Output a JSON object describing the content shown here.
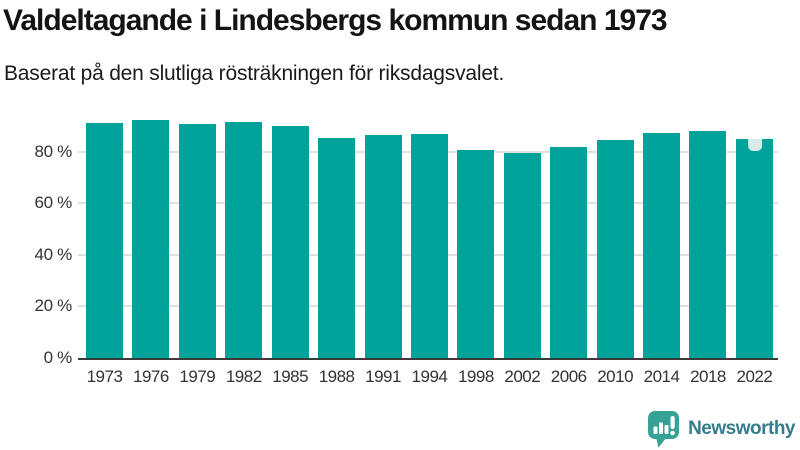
{
  "chart_data": {
    "type": "bar",
    "title": "Valdeltagande i Lindesbergs kommun sedan 1973",
    "subtitle": "Baserat på den slutliga rösträkningen för riksdagsvalet.",
    "categories": [
      "1973",
      "1976",
      "1979",
      "1982",
      "1985",
      "1988",
      "1991",
      "1994",
      "1998",
      "2002",
      "2006",
      "2010",
      "2014",
      "2018",
      "2022"
    ],
    "values": [
      91.3,
      92.3,
      90.6,
      91.6,
      90.0,
      85.3,
      86.4,
      86.9,
      80.6,
      79.5,
      81.9,
      84.5,
      87.1,
      87.9,
      84.8
    ],
    "unit": "%",
    "ylim": [
      0,
      95
    ],
    "yticks": [
      0,
      20,
      40,
      60,
      80
    ],
    "ytick_suffix": " %",
    "grid": "horizontal",
    "legend": "none",
    "bar_color": "#00a39a",
    "highlight": {
      "category": "2022",
      "style": "notch-marker",
      "color": "#d8ede9"
    }
  },
  "footer": {
    "brand": "Newsworthy",
    "logo_icon": "newsworthy-speech-bubble-bar-chart-icon"
  },
  "colors": {
    "bar": "#00a39a",
    "highlight_notch": "#d8ede9",
    "gridline": "#e0e0e0",
    "axis_line": "#3b3b3b",
    "tick_text": "#333333",
    "title_text": "#141414",
    "logo_icon": "#35a295",
    "logo_text": "#357d8d"
  }
}
